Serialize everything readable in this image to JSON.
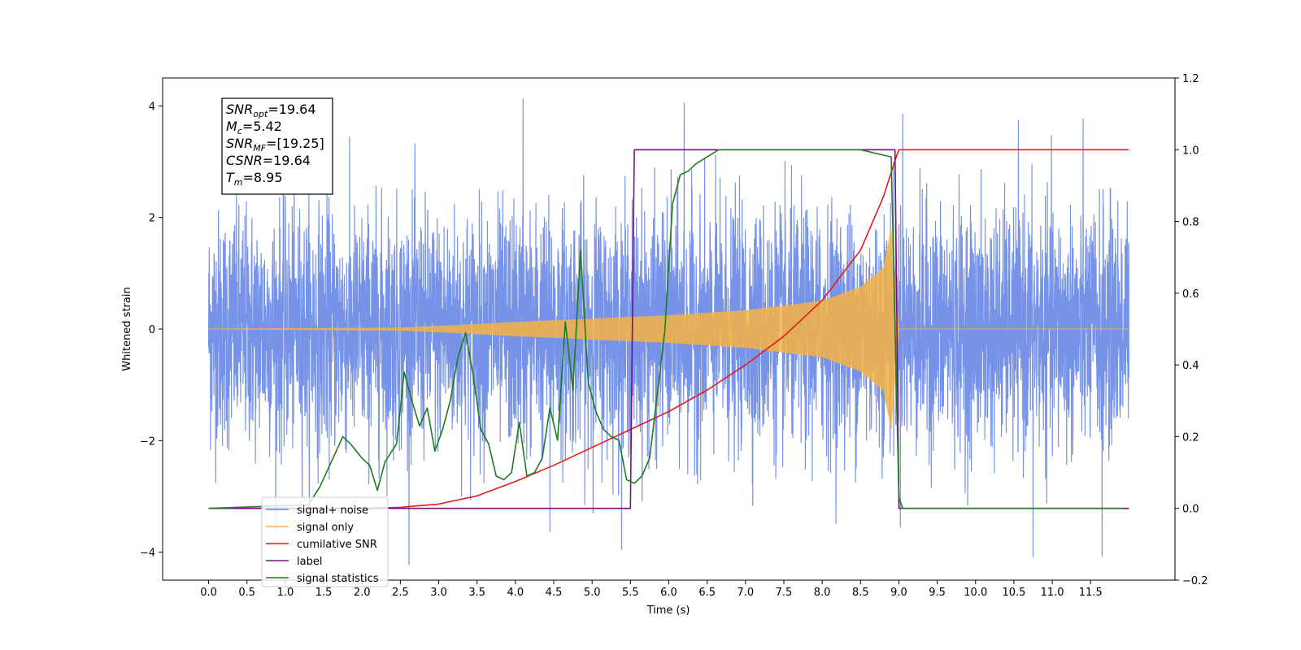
{
  "chart_data": {
    "type": "line",
    "title": "",
    "xlabel": "Time (s)",
    "ylabel": "Whitened strain",
    "xlim": [
      -0.6,
      12.6
    ],
    "ylim": [
      -4.5,
      4.5
    ],
    "y2lim": [
      -0.2,
      1.2
    ],
    "x_ticks": [
      0.0,
      0.5,
      1.0,
      1.5,
      2.0,
      2.5,
      3.0,
      3.5,
      4.0,
      4.5,
      5.0,
      5.5,
      6.0,
      6.5,
      7.0,
      7.5,
      8.0,
      8.5,
      9.0,
      9.5,
      10.0,
      10.5,
      11.0,
      11.5
    ],
    "x_tick_labels": [
      "0.0",
      "0.5",
      "1.0",
      "1.5",
      "2.0",
      "2.5",
      "3.0",
      "3.5",
      "4.0",
      "4.5",
      "5.0",
      "5.5",
      "6.0",
      "6.5",
      "7.0",
      "7.5",
      "8.0",
      "8.5",
      "9.0",
      "9.5",
      "10.0",
      "10.5",
      "11.0",
      "11.5"
    ],
    "y_ticks": [
      -4,
      -2,
      0,
      2,
      4
    ],
    "y_tick_labels": [
      "−4",
      "−2",
      "0",
      "2",
      "4"
    ],
    "y2_ticks": [
      -0.2,
      0.0,
      0.2,
      0.4,
      0.6,
      0.8,
      1.0,
      1.2
    ],
    "y2_tick_labels": [
      "−0.2",
      "0.0",
      "0.2",
      "0.4",
      "0.6",
      "0.8",
      "1.0",
      "1.2"
    ],
    "grid": false,
    "legend_position": "lower-left",
    "annotation": [
      {
        "base": "SNR",
        "sub": "opt",
        "value": "=19.64"
      },
      {
        "base": "M",
        "sub": "c",
        "value": "=5.42"
      },
      {
        "base": "SNR",
        "sub": "MF",
        "value": "=[19.25]"
      },
      {
        "base": "CSNR",
        "sub": "",
        "value": "=19.64"
      },
      {
        "base": "T",
        "sub": "m",
        "value": "=8.95"
      }
    ],
    "series": [
      {
        "name": "signal+ noise",
        "color": "#6b8ae6",
        "axis": "left",
        "kind": "noise",
        "x_range": [
          0.0,
          12.0
        ],
        "envelope_rms": 1.0,
        "peak_values": [
          4.12,
          4.05,
          3.85,
          -3.62,
          -4.08,
          -4.07
        ]
      },
      {
        "name": "signal only",
        "color": "#f5b342",
        "axis": "left",
        "kind": "chirp",
        "x_range": [
          0.0,
          9.0
        ],
        "amplitude_at": [
          [
            0.0,
            0.0
          ],
          [
            2.5,
            0.02
          ],
          [
            3.0,
            0.05
          ],
          [
            4.0,
            0.12
          ],
          [
            5.0,
            0.18
          ],
          [
            6.0,
            0.24
          ],
          [
            7.0,
            0.33
          ],
          [
            8.0,
            0.5
          ],
          [
            8.5,
            0.75
          ],
          [
            8.8,
            1.1
          ],
          [
            8.9,
            1.8
          ],
          [
            9.0,
            0.0
          ]
        ]
      },
      {
        "name": "cumilative SNR",
        "color": "#e41a1c",
        "axis": "right",
        "x": [
          0.0,
          2.0,
          2.5,
          3.0,
          3.5,
          4.0,
          4.5,
          5.0,
          5.5,
          6.0,
          6.5,
          7.0,
          7.5,
          8.0,
          8.5,
          8.8,
          8.95,
          9.0,
          12.0
        ],
        "y": [
          0.0,
          0.0,
          0.003,
          0.012,
          0.035,
          0.075,
          0.12,
          0.17,
          0.22,
          0.27,
          0.33,
          0.4,
          0.48,
          0.58,
          0.72,
          0.87,
          0.97,
          1.0,
          1.0
        ]
      },
      {
        "name": "label",
        "color": "#7b0d83",
        "axis": "right",
        "x": [
          0.0,
          5.5,
          5.55,
          8.95,
          9.0,
          12.0
        ],
        "y": [
          0.0,
          0.0,
          1.0,
          1.0,
          0.0,
          0.0
        ]
      },
      {
        "name": "signal statistics",
        "color": "#1e7b1e",
        "axis": "right",
        "x": [
          0.0,
          1.3,
          1.45,
          1.6,
          1.75,
          1.85,
          2.0,
          2.1,
          2.2,
          2.3,
          2.45,
          2.55,
          2.65,
          2.75,
          2.85,
          2.95,
          3.05,
          3.15,
          3.25,
          3.35,
          3.45,
          3.55,
          3.65,
          3.75,
          3.85,
          3.95,
          4.05,
          4.15,
          4.25,
          4.35,
          4.45,
          4.55,
          4.65,
          4.75,
          4.85,
          4.95,
          5.05,
          5.15,
          5.25,
          5.35,
          5.45,
          5.55,
          5.65,
          5.75,
          5.85,
          5.95,
          6.05,
          6.15,
          6.25,
          6.35,
          6.5,
          6.65,
          6.8,
          7.0,
          8.5,
          8.9,
          9.0,
          9.05,
          11.9
        ],
        "y": [
          0.0,
          0.01,
          0.06,
          0.13,
          0.2,
          0.18,
          0.14,
          0.12,
          0.05,
          0.13,
          0.18,
          0.38,
          0.3,
          0.23,
          0.28,
          0.16,
          0.22,
          0.3,
          0.42,
          0.49,
          0.37,
          0.22,
          0.18,
          0.09,
          0.08,
          0.1,
          0.24,
          0.09,
          0.1,
          0.14,
          0.28,
          0.19,
          0.52,
          0.33,
          0.72,
          0.35,
          0.27,
          0.22,
          0.2,
          0.19,
          0.08,
          0.07,
          0.09,
          0.14,
          0.32,
          0.5,
          0.85,
          0.93,
          0.94,
          0.96,
          0.98,
          1.0,
          1.0,
          1.0,
          1.0,
          0.98,
          0.03,
          0.0,
          0.0
        ]
      }
    ]
  },
  "legend": {
    "items": [
      {
        "label": "signal+ noise",
        "color": "#6b8ae6"
      },
      {
        "label": "signal only",
        "color": "#f5b342"
      },
      {
        "label": "cumilative SNR",
        "color": "#e41a1c"
      },
      {
        "label": "label",
        "color": "#7b0d83"
      },
      {
        "label": "signal statistics",
        "color": "#1e7b1e"
      }
    ]
  }
}
